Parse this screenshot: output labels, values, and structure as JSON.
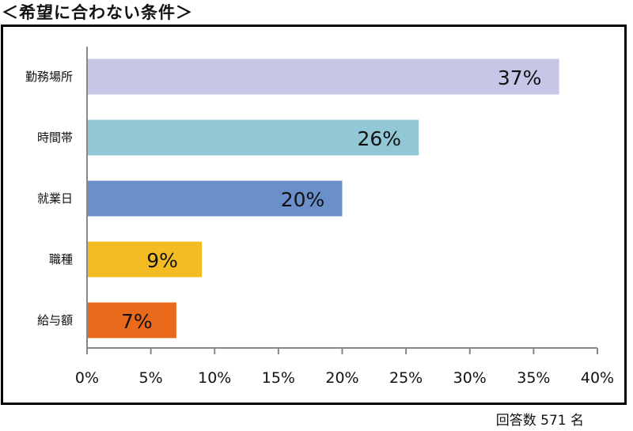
{
  "chart_data": {
    "type": "bar",
    "orientation": "horizontal",
    "title": "＜希望に合わない条件＞",
    "categories": [
      "勤務場所",
      "時間帯",
      "就業日",
      "職種",
      "給与額"
    ],
    "values": [
      37,
      26,
      20,
      9,
      7
    ],
    "data_labels": [
      "37%",
      "26%",
      "20%",
      "9%",
      "7%"
    ],
    "bar_colors": [
      "#c6c7e6",
      "#92c8d6",
      "#6a8fcb",
      "#f4bb22",
      "#e96a1b"
    ],
    "xlim": [
      0,
      40
    ],
    "xticks": [
      0,
      5,
      10,
      15,
      20,
      25,
      30,
      35,
      40
    ],
    "xtick_labels": [
      "0%",
      "5%",
      "10%",
      "15%",
      "20%",
      "25%",
      "30%",
      "35%",
      "40%"
    ],
    "grid": false,
    "xlabel": "",
    "ylabel": ""
  },
  "footnote": "回答数 571 名"
}
